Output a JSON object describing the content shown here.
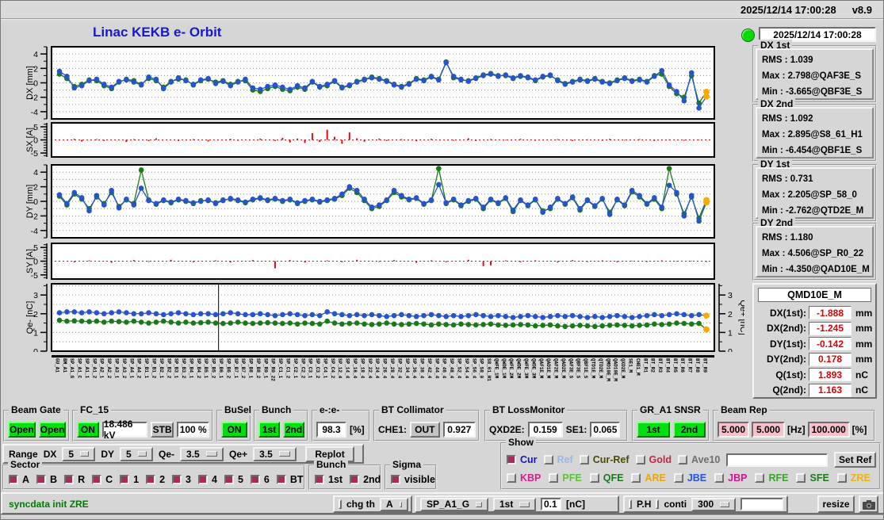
{
  "header": {
    "time": "2025/12/14 17:00:28",
    "version": "v8.9",
    "title": "Linac KEKB e- Orbit",
    "panel_time": "2025/12/14 17:00:28"
  },
  "stats": {
    "dx1": {
      "title": "DX 1st",
      "lines": [
        "RMS :  1.039",
        "Max :  2.798@QAF3E_S",
        "Min :  -3.665@QBF3E_S"
      ]
    },
    "dx2": {
      "title": "DX 2nd",
      "lines": [
        "RMS :  1.092",
        "Max :  2.895@S8_61_H1",
        "Min :  -6.454@QBF1E_S"
      ]
    },
    "dy1": {
      "title": "DY 1st",
      "lines": [
        "RMS :  0.731",
        "Max :  2.205@SP_58_0",
        "Min :  -2.762@QTD2E_M"
      ]
    },
    "dy2": {
      "title": "DY 2nd",
      "lines": [
        "RMS :  1.180",
        "Max :  4.506@SP_R0_22",
        "Min :  -4.350@QAD10E_M"
      ]
    }
  },
  "monitor": {
    "title": "QMD10E_M",
    "rows": [
      {
        "label": "DX(1st):",
        "value": "-1.888",
        "unit": "mm"
      },
      {
        "label": "DX(2nd):",
        "value": "-1.245",
        "unit": "mm"
      },
      {
        "label": "DY(1st):",
        "value": "-0.142",
        "unit": "mm"
      },
      {
        "label": "DY(2nd):",
        "value": "0.178",
        "unit": "mm"
      },
      {
        "label": "Q(1st):",
        "value": "1.893",
        "unit": "nC"
      },
      {
        "label": "Q(2nd):",
        "value": "1.163",
        "unit": "nC"
      }
    ]
  },
  "controls": {
    "beam_gate": {
      "title": "Beam Gate",
      "b1": "Open",
      "b2": "Open"
    },
    "fc15": {
      "title": "FC_15",
      "on": "ON",
      "kv": "18.486 kV",
      "stb": "STB",
      "pct": "100 %"
    },
    "busel": {
      "title": "BuSel",
      "on": "ON"
    },
    "bunch": {
      "title": "Bunch",
      "b1": "1st",
      "b2": "2nd"
    },
    "ee": {
      "title": "e-:e-",
      "value": "98.3",
      "unit": "[%]"
    },
    "bt_col": {
      "title": "BT Collimator",
      "label": "CHE1:",
      "state": "OUT",
      "value": "0.927"
    },
    "bt_loss": {
      "title": "BT LossMonitor",
      "l1": "QXD2E:",
      "v1": "0.159",
      "l2": "SE1:",
      "v2": "0.065"
    },
    "gr_a1": {
      "title": "GR_A1 SNSR",
      "b1": "1st",
      "b2": "2nd"
    },
    "beam_rep": {
      "title": "Beam Rep",
      "v1": "5.000",
      "v2": "5.000",
      "hz": "[Hz]",
      "v3": "100.000",
      "pct": "[%]"
    }
  },
  "range_row": {
    "range": "Range",
    "dx_l": "DX",
    "dx": "5",
    "dy_l": "DY",
    "dy": "5",
    "qem_l": "Qe-",
    "qem": "3.5",
    "qep_l": "Qe+",
    "qep": "3.5",
    "replot": "Replot"
  },
  "sector": {
    "title": "Sector",
    "items": [
      "A",
      "B",
      "R",
      "C",
      "1",
      "2",
      "3",
      "4",
      "5",
      "6",
      "BT"
    ]
  },
  "bunch_sel": {
    "title": "Bunch",
    "items": [
      "1st",
      "2nd"
    ]
  },
  "sigma": {
    "title": "Sigma",
    "items": [
      "visible"
    ]
  },
  "show": {
    "title": "Show",
    "row1": [
      {
        "label": "Cur",
        "color": "#1515c8",
        "checked": true
      },
      {
        "label": "Ref",
        "color": "#9db7e8",
        "checked": false
      },
      {
        "label": "Cur-Ref",
        "color": "#4a4a00",
        "checked": false
      },
      {
        "label": "Gold",
        "color": "#c62641",
        "checked": false
      },
      {
        "label": "Ave10",
        "color": "#6f6f6f",
        "checked": false
      }
    ],
    "ref_value": "",
    "set_ref": "Set Ref",
    "row2": [
      {
        "label": "KBP",
        "color": "#d41f8d",
        "checked": false
      },
      {
        "label": "PFE",
        "color": "#59c43a",
        "checked": false
      },
      {
        "label": "QFE",
        "color": "#1c7a1c",
        "checked": false
      },
      {
        "label": "ARE",
        "color": "#e2a70c",
        "checked": false
      },
      {
        "label": "JBE",
        "color": "#2a52dd",
        "checked": false
      },
      {
        "label": "JBP",
        "color": "#d4158d",
        "checked": false
      },
      {
        "label": "RFE",
        "color": "#3aa32a",
        "checked": false
      },
      {
        "label": "SFE",
        "color": "#1c7a1c",
        "checked": false
      },
      {
        "label": "ZRE",
        "color": "#e8b414",
        "checked": false
      }
    ]
  },
  "statusbar": {
    "message": "syncdata init ZRE",
    "chg_th": "chg th",
    "th": "A",
    "dev": "SP_A1_G",
    "bunch": "1st",
    "thr": "0.1",
    "unit": "[nC]",
    "ph": "P.H",
    "conti": "conti",
    "count": "300",
    "blank": "",
    "resize": "resize"
  },
  "xlabels": [
    "GU_A1",
    "BM_A1",
    "SP_A1_G",
    "SP_A1_C",
    "SP_A1_1",
    "SP_A1_2",
    "SP_A2_1",
    "SP_A2_2",
    "SP_A3_1",
    "SP_A3_2",
    "SP_A4_1",
    "SP_A4_2",
    "SP_B1_1",
    "SP_B1_2",
    "SP_B2_1",
    "SP_B2_2",
    "SP_B3_1",
    "SP_B3_2",
    "SP_B4_1",
    "SP_B4_2",
    "SP_B5_1",
    "SP_B5_2",
    "SP_B6_1",
    "SP_B6_2",
    "SP_B7_1",
    "SP_B7_2",
    "SP_B8_1",
    "SP_B8_2",
    "SP_R0_1",
    "SP_R0_22",
    "SP_C1_1",
    "SP_C1_2",
    "SP_C2_1",
    "SP_C2_2",
    "SP_C3_1",
    "SP_C3_2",
    "SP_C4_1",
    "SP_C4_2",
    "SP_12_4",
    "SP_14_4",
    "SP_16_4",
    "SP_18_4",
    "SP_22_4",
    "SP_24_4",
    "SP_26_4",
    "SP_28_4",
    "SP_32_4",
    "SP_34_4",
    "SP_36_4",
    "SP_38_4",
    "SP_42_4",
    "SP_44_4",
    "SP_46_4",
    "SP_48_4",
    "SP_52_4",
    "SP_54_4",
    "SP_56_4",
    "SP_58_0",
    "S8_61_H1",
    "QWFE_1M",
    "QWDE_1M",
    "QWFE_2M",
    "QWDE_2M",
    "QWFE_3M",
    "QWDE_3M",
    "QAF1E_M",
    "QAD1E_M",
    "QAF2E_M",
    "QAD2E_M",
    "QAF3E_S",
    "QBF3E_S",
    "QBF1E_S",
    "QTD1E_M",
    "QTD2E_M",
    "QMD10E_M",
    "QAD10E_M",
    "QXD2E_M",
    "SE1_M",
    "CHE1_M",
    "BT_R1",
    "BT_R2",
    "BT_R3",
    "BT_R4",
    "BT_R5",
    "BT_R6",
    "BT_R7",
    "BT_R8",
    "BT_R9"
  ],
  "chart_data": [
    {
      "id": "dx",
      "type": "scatter",
      "title": "DX orbit",
      "ylabel": "DX [mm]",
      "ylim": [
        -5,
        5
      ],
      "yticks": [
        -4,
        -2,
        0,
        2,
        4
      ],
      "minor_step": 1,
      "grid_step": 1,
      "last_orange": true,
      "series": [
        {
          "name": "2nd",
          "color": "#1a7a1a",
          "values": [
            1.2,
            0.6,
            -0.5,
            -0.2,
            0.4,
            0.3,
            -0.4,
            -0.8,
            0.1,
            0.5,
            0.3,
            -0.2,
            0.6,
            0.3,
            -0.6,
            0.2,
            0.5,
            0.4,
            -0.3,
            0.3,
            0.5,
            0.1,
            0.3,
            -0.2,
            0.2,
            0.3,
            -1.0,
            -1.2,
            -0.8,
            -0.5,
            -0.9,
            -1.1,
            -0.6,
            -0.9,
            0.1,
            -0.6,
            -0.4,
            0.2,
            -0.7,
            -0.4,
            0.2,
            0.5,
            0.8,
            0.6,
            0.3,
            -0.2,
            -0.5,
            -0.1,
            0.6,
            0.4,
            0.9,
            0.5,
            2.9,
            0.7,
            0.4,
            0.3,
            0.7,
            1.1,
            1.3,
            1.0,
            1.0,
            0.6,
            0.9,
            0.7,
            0.3,
            0.8,
            1.0,
            0.4,
            -0.1,
            0.2,
            0.5,
            0.3,
            0.6,
            0.2,
            0.0,
            0.4,
            0.7,
            0.3,
            0.5,
            0.2,
            1.0,
            1.2,
            -0.5,
            -1.5,
            -2.0,
            1.0,
            -2.8,
            -1.245
          ]
        },
        {
          "name": "1st",
          "color": "#2753cc",
          "values": [
            1.6,
            0.9,
            -0.7,
            -0.4,
            0.3,
            0.5,
            -0.2,
            -0.6,
            0.2,
            0.4,
            0.1,
            -0.3,
            0.8,
            0.5,
            -0.8,
            0.1,
            0.7,
            0.3,
            -0.2,
            0.4,
            0.6,
            -0.1,
            0.2,
            -0.4,
            0.1,
            0.5,
            -0.7,
            -0.9,
            -0.5,
            -0.3,
            -0.6,
            -0.9,
            -0.4,
            -0.7,
            0.2,
            -0.5,
            -0.2,
            0.3,
            -0.6,
            -0.3,
            0.1,
            0.4,
            0.7,
            0.5,
            0.2,
            -0.3,
            -0.6,
            -0.2,
            0.5,
            0.3,
            0.8,
            0.4,
            2.8,
            0.9,
            0.5,
            0.2,
            0.6,
            1.0,
            1.2,
            0.9,
            1.1,
            0.7,
            1.0,
            0.8,
            0.4,
            0.9,
            1.1,
            0.3,
            -0.2,
            0.1,
            0.4,
            0.2,
            0.5,
            0.1,
            -0.1,
            0.3,
            0.6,
            0.2,
            0.4,
            0.1,
            0.9,
            1.7,
            -0.3,
            -1.2,
            -2.5,
            1.4,
            -3.5,
            -1.888
          ]
        }
      ]
    },
    {
      "id": "sx",
      "type": "bar",
      "title": "SX steering",
      "ylabel": "SX [A]",
      "ylim": [
        -6.5,
        6.5
      ],
      "yticks": [
        -5,
        0,
        5
      ],
      "minor_step": 1,
      "bar_color": "#e01010",
      "zero_dash": true,
      "values": [
        0,
        0,
        0.4,
        -0.6,
        0,
        0.3,
        -0.4,
        0,
        0,
        -0.8,
        0.3,
        0,
        -0.5,
        0.6,
        0,
        0,
        -0.4,
        0,
        0.3,
        0,
        -0.6,
        0,
        0,
        0.4,
        -0.3,
        0,
        0,
        0.5,
        0,
        -0.4,
        0.8,
        -1.0,
        0.5,
        -1.2,
        2.6,
        -0.8,
        3.9,
        1.2,
        -1.5,
        2.9,
        0.6,
        -0.7,
        0,
        0.5,
        -0.4,
        0,
        0.3,
        0,
        -0.5,
        0,
        0.4,
        0,
        0,
        -0.3,
        0,
        0.6,
        -0.4,
        0,
        0.3,
        0,
        -0.2,
        0,
        0.4,
        0,
        -0.3,
        0,
        0,
        0.3,
        0,
        -0.4,
        0,
        0.2,
        0,
        -0.3,
        0.4,
        0,
        -0.2,
        0,
        0.3,
        0,
        -0.4,
        0,
        0.2,
        0,
        -0.3,
        0,
        0.2,
        0
      ]
    },
    {
      "id": "dy",
      "type": "scatter",
      "title": "DY orbit",
      "ylabel": "DY [mm]",
      "ylim": [
        -5,
        5
      ],
      "yticks": [
        -4,
        -2,
        0,
        2,
        4
      ],
      "minor_step": 1,
      "grid_step": 1,
      "last_orange": true,
      "series": [
        {
          "name": "2nd",
          "color": "#1a7a1a",
          "values": [
            0.7,
            -0.5,
            1.0,
            0.3,
            -1.0,
            0.6,
            -0.3,
            1.2,
            -0.7,
            0.2,
            -0.3,
            4.3,
            0.2,
            -0.4,
            0.1,
            -0.2,
            0.2,
            0.0,
            -0.3,
            0.1,
            0.1,
            -0.2,
            0.2,
            0.3,
            0.1,
            -0.2,
            0.2,
            0.4,
            0.1,
            0.3,
            0.0,
            0.2,
            -0.3,
            0.0,
            0.2,
            -0.1,
            0.1,
            0.3,
            0.8,
            1.8,
            1.2,
            0.1,
            -1.0,
            -0.7,
            0.1,
            1.2,
            0.6,
            0.2,
            0.4,
            -0.4,
            0.1,
            4.5,
            -0.3,
            0.2,
            -0.6,
            0.0,
            0.3,
            -1.0,
            0.2,
            -0.3,
            0.4,
            -1.4,
            0.1,
            -0.6,
            0.2,
            -1.3,
            -1.0,
            0.3,
            -0.4,
            0.5,
            -1.2,
            0.1,
            -0.7,
            0.3,
            -1.5,
            0.2,
            -0.6,
            1.3,
            0.6,
            -0.4,
            0.3,
            -1.0,
            4.5,
            1.0,
            -1.7,
            0.6,
            -2.3,
            0.178
          ]
        },
        {
          "name": "1st",
          "color": "#2753cc",
          "values": [
            0.9,
            -0.3,
            1.2,
            0.5,
            -1.3,
            0.8,
            -0.5,
            1.5,
            -0.9,
            0.3,
            -0.5,
            1.8,
            0.1,
            -0.3,
            0.2,
            -0.1,
            0.3,
            0.1,
            -0.2,
            0.0,
            0.2,
            -0.3,
            0.1,
            0.4,
            0.2,
            -0.1,
            0.3,
            0.5,
            0.2,
            0.4,
            0.1,
            0.3,
            -0.2,
            0.1,
            0.3,
            0.0,
            0.2,
            0.4,
            1.0,
            2.0,
            1.5,
            0.3,
            -0.8,
            -0.5,
            0.2,
            1.5,
            0.8,
            0.3,
            0.5,
            -0.3,
            0.2,
            2.3,
            -0.2,
            0.3,
            -0.5,
            0.1,
            0.4,
            -0.8,
            0.3,
            -0.2,
            0.5,
            -1.2,
            0.2,
            -0.5,
            0.3,
            -1.5,
            -0.8,
            0.4,
            -0.3,
            0.6,
            -1.0,
            0.2,
            -0.6,
            0.4,
            -1.8,
            0.3,
            -0.5,
            1.5,
            0.8,
            -0.3,
            0.5,
            -0.8,
            2.2,
            1.2,
            -2.0,
            0.8,
            -2.7,
            -0.142
          ]
        }
      ]
    },
    {
      "id": "sy",
      "type": "bar",
      "title": "SY steering",
      "ylabel": "SY [A]",
      "ylim": [
        -6.5,
        6.5
      ],
      "yticks": [
        -5,
        0,
        5
      ],
      "minor_step": 1,
      "bar_color": "#e01010",
      "zero_dash": true,
      "values": [
        0,
        0,
        -0.4,
        0,
        0.3,
        0,
        0,
        -0.6,
        0,
        0,
        0.4,
        0,
        -0.3,
        0,
        0,
        0.5,
        0,
        0,
        -0.4,
        0,
        0,
        0.3,
        0,
        -0.5,
        0,
        0,
        0.4,
        0,
        0,
        -2.6,
        0,
        0.4,
        0,
        -0.5,
        0,
        0,
        0.3,
        0,
        -0.4,
        0,
        0.5,
        0,
        0,
        -0.3,
        0,
        0.4,
        0,
        0,
        -0.6,
        0,
        0.3,
        0,
        -0.4,
        0,
        0,
        0.5,
        0,
        -1.8,
        -1.5,
        0,
        0.3,
        0,
        -0.4,
        0,
        0.3,
        0,
        0,
        -0.5,
        0,
        0.4,
        0,
        -0.3,
        0,
        0.3,
        0,
        -0.4,
        0,
        0.2,
        0,
        -0.3,
        0,
        0.3,
        0,
        -0.2,
        0,
        0.2,
        0,
        -0.3
      ]
    },
    {
      "id": "q",
      "type": "scatter",
      "title": "Charge",
      "ylabel": "Qe- [nC]",
      "ylabel_right": "Qe+ [nC]",
      "ylim": [
        0,
        3.6
      ],
      "yticks": [
        0,
        1,
        2,
        3
      ],
      "minor_step": 0.5,
      "grid_step": 0.5,
      "right_axis": true,
      "vline_frac": 0.252,
      "last_orange": true,
      "series": [
        {
          "name": "2nd",
          "color": "#1a7a1a",
          "values": [
            1.65,
            1.6,
            1.62,
            1.6,
            1.58,
            1.6,
            1.55,
            1.6,
            1.58,
            1.55,
            1.6,
            1.55,
            1.5,
            1.55,
            1.6,
            1.55,
            1.5,
            1.55,
            1.5,
            1.52,
            1.55,
            1.5,
            1.48,
            1.5,
            1.55,
            1.5,
            1.48,
            1.5,
            1.52,
            1.5,
            1.48,
            1.5,
            1.45,
            1.5,
            1.48,
            1.45,
            1.6,
            1.5,
            1.45,
            1.48,
            1.5,
            1.45,
            1.42,
            1.45,
            1.5,
            1.45,
            1.42,
            1.45,
            1.48,
            1.45,
            1.4,
            1.45,
            1.42,
            1.4,
            1.45,
            1.42,
            1.4,
            1.42,
            1.45,
            1.4,
            1.38,
            1.4,
            1.42,
            1.4,
            1.35,
            1.38,
            1.4,
            1.35,
            1.32,
            1.35,
            1.38,
            1.35,
            1.32,
            1.35,
            1.38,
            1.4,
            1.38,
            1.35,
            1.38,
            1.4,
            1.45,
            1.42,
            1.45,
            1.5,
            1.48,
            1.45,
            1.48,
            1.163
          ]
        },
        {
          "name": "1st",
          "color": "#2753cc",
          "values": [
            2.05,
            2.1,
            2.1,
            2.05,
            2.1,
            2.05,
            2.0,
            2.05,
            2.1,
            2.05,
            2.0,
            2.0,
            2.05,
            2.0,
            1.95,
            2.0,
            2.05,
            2.0,
            1.95,
            2.0,
            2.0,
            1.95,
            2.0,
            2.05,
            2.0,
            1.95,
            1.95,
            2.0,
            1.95,
            1.9,
            1.95,
            2.0,
            1.95,
            1.9,
            1.95,
            1.9,
            2.1,
            2.0,
            1.95,
            1.9,
            1.95,
            1.9,
            1.95,
            1.9,
            1.85,
            1.9,
            1.95,
            1.9,
            1.85,
            1.9,
            1.95,
            1.9,
            1.85,
            1.9,
            1.85,
            1.9,
            1.95,
            1.9,
            1.85,
            1.9,
            1.85,
            1.8,
            1.85,
            1.9,
            1.85,
            1.8,
            1.85,
            1.9,
            1.85,
            1.9,
            1.85,
            1.8,
            1.85,
            1.8,
            1.85,
            1.9,
            1.85,
            1.8,
            1.85,
            1.9,
            1.95,
            1.9,
            1.95,
            2.0,
            1.95,
            1.9,
            1.95,
            1.893
          ]
        }
      ]
    }
  ],
  "colors": {
    "accent_green": "#00e010",
    "pink": "#f9bfca",
    "value_red": "#e00000",
    "status_green": "#047804",
    "title_blue": "#1717cf",
    "orange_marker": "#ffa800"
  }
}
